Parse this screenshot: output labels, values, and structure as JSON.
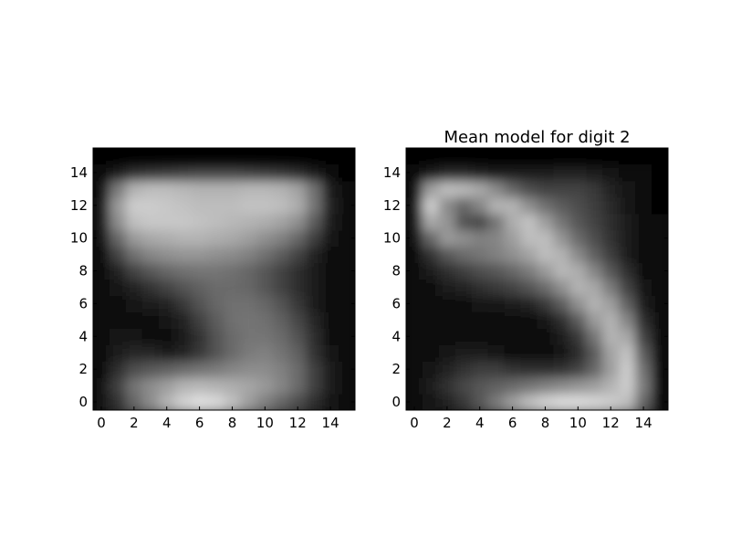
{
  "chart_data": [
    {
      "type": "heatmap",
      "title": "",
      "xlabel": "",
      "ylabel": "",
      "colormap": "gray",
      "xlim": [
        -0.5,
        15.5
      ],
      "ylim": [
        15.5,
        -0.5
      ],
      "xticks": [
        0,
        2,
        4,
        6,
        8,
        10,
        12,
        14
      ],
      "yticks": [
        0,
        2,
        4,
        6,
        8,
        10,
        12,
        14
      ],
      "grid": false,
      "values": [
        [
          0.05,
          0.1,
          0.12,
          0.14,
          0.16,
          0.18,
          0.2,
          0.2,
          0.18,
          0.16,
          0.14,
          0.12,
          0.1,
          0.08,
          0.05,
          0.03
        ],
        [
          0.08,
          0.2,
          0.4,
          0.55,
          0.7,
          0.82,
          0.88,
          0.85,
          0.75,
          0.62,
          0.5,
          0.4,
          0.3,
          0.18,
          0.08,
          0.04
        ],
        [
          0.08,
          0.25,
          0.45,
          0.55,
          0.62,
          0.7,
          0.72,
          0.7,
          0.68,
          0.65,
          0.6,
          0.52,
          0.42,
          0.25,
          0.1,
          0.04
        ],
        [
          0.06,
          0.18,
          0.3,
          0.35,
          0.38,
          0.42,
          0.45,
          0.48,
          0.52,
          0.55,
          0.55,
          0.5,
          0.42,
          0.25,
          0.1,
          0.04
        ],
        [
          0.05,
          0.1,
          0.15,
          0.15,
          0.12,
          0.14,
          0.22,
          0.32,
          0.42,
          0.48,
          0.5,
          0.45,
          0.38,
          0.2,
          0.08,
          0.03
        ],
        [
          0.04,
          0.07,
          0.08,
          0.06,
          0.06,
          0.1,
          0.2,
          0.32,
          0.42,
          0.46,
          0.46,
          0.42,
          0.32,
          0.18,
          0.06,
          0.03
        ],
        [
          0.04,
          0.06,
          0.06,
          0.06,
          0.08,
          0.14,
          0.25,
          0.36,
          0.44,
          0.46,
          0.44,
          0.38,
          0.28,
          0.15,
          0.06,
          0.03
        ],
        [
          0.04,
          0.06,
          0.08,
          0.1,
          0.14,
          0.22,
          0.32,
          0.4,
          0.44,
          0.44,
          0.4,
          0.32,
          0.22,
          0.12,
          0.05,
          0.03
        ],
        [
          0.04,
          0.08,
          0.14,
          0.2,
          0.26,
          0.32,
          0.38,
          0.42,
          0.42,
          0.4,
          0.34,
          0.26,
          0.18,
          0.1,
          0.05,
          0.03
        ],
        [
          0.05,
          0.14,
          0.26,
          0.34,
          0.4,
          0.44,
          0.46,
          0.46,
          0.44,
          0.4,
          0.34,
          0.26,
          0.18,
          0.1,
          0.05,
          0.03
        ],
        [
          0.06,
          0.26,
          0.44,
          0.52,
          0.56,
          0.58,
          0.58,
          0.56,
          0.54,
          0.5,
          0.44,
          0.36,
          0.26,
          0.14,
          0.06,
          0.03
        ],
        [
          0.08,
          0.4,
          0.6,
          0.66,
          0.68,
          0.7,
          0.7,
          0.68,
          0.66,
          0.62,
          0.56,
          0.5,
          0.4,
          0.24,
          0.08,
          0.04
        ],
        [
          0.1,
          0.55,
          0.75,
          0.78,
          0.78,
          0.78,
          0.76,
          0.74,
          0.72,
          0.7,
          0.68,
          0.64,
          0.56,
          0.36,
          0.12,
          0.04
        ],
        [
          0.1,
          0.6,
          0.8,
          0.8,
          0.78,
          0.76,
          0.74,
          0.74,
          0.74,
          0.76,
          0.76,
          0.74,
          0.68,
          0.46,
          0.14,
          0.05
        ],
        [
          0.08,
          0.48,
          0.7,
          0.74,
          0.74,
          0.72,
          0.7,
          0.7,
          0.7,
          0.72,
          0.72,
          0.7,
          0.64,
          0.44,
          0.12,
          0.04
        ],
        [
          0.04,
          0.12,
          0.2,
          0.22,
          0.24,
          0.26,
          0.28,
          0.28,
          0.28,
          0.26,
          0.24,
          0.22,
          0.18,
          0.12,
          0.05,
          0.02
        ]
      ]
    },
    {
      "type": "heatmap",
      "title": "Mean model for digit 2",
      "xlabel": "",
      "ylabel": "",
      "colormap": "gray",
      "xlim": [
        -0.5,
        15.5
      ],
      "ylim": [
        15.5,
        -0.5
      ],
      "xticks": [
        0,
        2,
        4,
        6,
        8,
        10,
        12,
        14
      ],
      "yticks": [
        0,
        2,
        4,
        6,
        8,
        10,
        12,
        14
      ],
      "grid": false,
      "values": [
        [
          0.03,
          0.04,
          0.05,
          0.06,
          0.08,
          0.1,
          0.12,
          0.14,
          0.16,
          0.18,
          0.18,
          0.18,
          0.16,
          0.14,
          0.08,
          0.03
        ],
        [
          0.04,
          0.08,
          0.14,
          0.22,
          0.34,
          0.48,
          0.62,
          0.74,
          0.82,
          0.86,
          0.86,
          0.84,
          0.8,
          0.74,
          0.4,
          0.05
        ],
        [
          0.04,
          0.1,
          0.2,
          0.28,
          0.34,
          0.38,
          0.42,
          0.46,
          0.5,
          0.54,
          0.58,
          0.62,
          0.7,
          0.8,
          0.48,
          0.05
        ],
        [
          0.04,
          0.08,
          0.14,
          0.2,
          0.24,
          0.24,
          0.2,
          0.18,
          0.18,
          0.2,
          0.26,
          0.4,
          0.62,
          0.8,
          0.44,
          0.05
        ],
        [
          0.03,
          0.06,
          0.08,
          0.1,
          0.1,
          0.08,
          0.06,
          0.06,
          0.06,
          0.08,
          0.16,
          0.36,
          0.64,
          0.76,
          0.36,
          0.04
        ],
        [
          0.03,
          0.05,
          0.06,
          0.05,
          0.04,
          0.04,
          0.04,
          0.04,
          0.05,
          0.1,
          0.22,
          0.46,
          0.7,
          0.66,
          0.26,
          0.04
        ],
        [
          0.03,
          0.04,
          0.04,
          0.04,
          0.04,
          0.04,
          0.04,
          0.05,
          0.08,
          0.18,
          0.36,
          0.6,
          0.7,
          0.52,
          0.18,
          0.03
        ],
        [
          0.03,
          0.04,
          0.05,
          0.06,
          0.07,
          0.08,
          0.1,
          0.14,
          0.22,
          0.36,
          0.56,
          0.7,
          0.62,
          0.38,
          0.12,
          0.03
        ],
        [
          0.04,
          0.06,
          0.1,
          0.14,
          0.18,
          0.22,
          0.26,
          0.32,
          0.42,
          0.56,
          0.7,
          0.66,
          0.48,
          0.26,
          0.08,
          0.03
        ],
        [
          0.05,
          0.1,
          0.18,
          0.24,
          0.3,
          0.34,
          0.4,
          0.48,
          0.6,
          0.72,
          0.68,
          0.52,
          0.34,
          0.18,
          0.06,
          0.03
        ],
        [
          0.06,
          0.2,
          0.34,
          0.42,
          0.46,
          0.5,
          0.56,
          0.64,
          0.74,
          0.7,
          0.54,
          0.38,
          0.24,
          0.12,
          0.05,
          0.03
        ],
        [
          0.08,
          0.4,
          0.6,
          0.56,
          0.5,
          0.52,
          0.62,
          0.74,
          0.74,
          0.58,
          0.42,
          0.3,
          0.2,
          0.1,
          0.05,
          0.03
        ],
        [
          0.1,
          0.66,
          0.58,
          0.32,
          0.28,
          0.46,
          0.68,
          0.76,
          0.62,
          0.46,
          0.34,
          0.26,
          0.18,
          0.1,
          0.05,
          0.03
        ],
        [
          0.1,
          0.8,
          0.54,
          0.4,
          0.52,
          0.7,
          0.7,
          0.56,
          0.44,
          0.36,
          0.3,
          0.24,
          0.16,
          0.08,
          0.04,
          0.02
        ],
        [
          0.08,
          0.62,
          0.74,
          0.72,
          0.66,
          0.54,
          0.4,
          0.3,
          0.26,
          0.26,
          0.26,
          0.22,
          0.14,
          0.07,
          0.03,
          0.02
        ],
        [
          0.03,
          0.1,
          0.16,
          0.16,
          0.14,
          0.12,
          0.1,
          0.1,
          0.12,
          0.14,
          0.14,
          0.12,
          0.08,
          0.05,
          0.03,
          0.02
        ]
      ]
    }
  ]
}
